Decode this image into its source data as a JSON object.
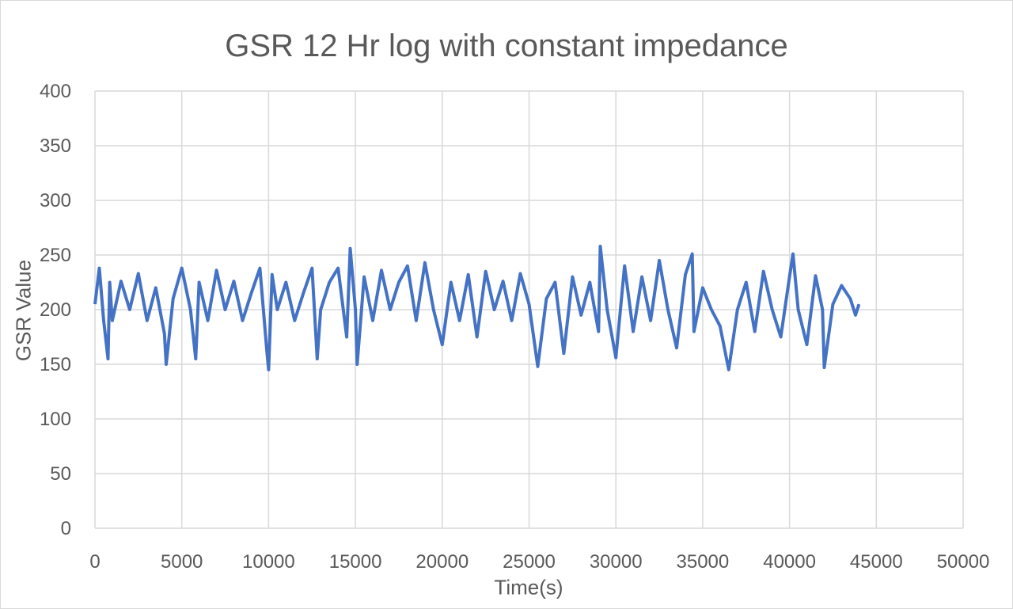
{
  "chart_data": {
    "type": "line",
    "title": "GSR 12 Hr log with constant impedance",
    "xlabel": "Time(s)",
    "ylabel": "GSR Value",
    "xlim": [
      0,
      50000
    ],
    "ylim": [
      0,
      400
    ],
    "x_ticks": [
      0,
      5000,
      10000,
      15000,
      20000,
      25000,
      30000,
      35000,
      40000,
      45000,
      50000
    ],
    "y_ticks": [
      0,
      50,
      100,
      150,
      200,
      250,
      300,
      350,
      400
    ],
    "x_tick_labels": [
      "0",
      "5000",
      "10000",
      "15000",
      "20000",
      "25000",
      "30000",
      "35000",
      "40000",
      "45000",
      "50000"
    ],
    "y_tick_labels": [
      "0",
      "50",
      "100",
      "150",
      "200",
      "250",
      "300",
      "350",
      "400"
    ],
    "grid": true,
    "series_color": "#4472c4",
    "grid_color": "#d9d9d9",
    "series": [
      {
        "name": "",
        "x": [
          0,
          250,
          500,
          750,
          850,
          1000,
          1500,
          2000,
          2500,
          3000,
          3500,
          4000,
          4100,
          4500,
          5000,
          5500,
          5800,
          6000,
          6500,
          7000,
          7500,
          8000,
          8500,
          9000,
          9500,
          9900,
          10000,
          10200,
          10500,
          11000,
          11500,
          12000,
          12500,
          12800,
          13000,
          13500,
          14000,
          14500,
          14700,
          15000,
          15100,
          15500,
          16000,
          16500,
          17000,
          17500,
          18000,
          18500,
          19000,
          19500,
          20000,
          20500,
          21000,
          21500,
          22000,
          22500,
          23000,
          23500,
          24000,
          24500,
          25000,
          25500,
          26000,
          26500,
          27000,
          27500,
          28000,
          28500,
          29000,
          29100,
          29500,
          30000,
          30500,
          31000,
          31500,
          32000,
          32500,
          33000,
          33500,
          34000,
          34400,
          34500,
          35000,
          35500,
          36000,
          36500,
          37000,
          37500,
          38000,
          38500,
          39000,
          39500,
          40000,
          40200,
          40500,
          41000,
          41500,
          41900,
          42000,
          42500,
          43000,
          43500,
          43800,
          44000
        ],
        "y": [
          205,
          238,
          190,
          155,
          225,
          190,
          226,
          200,
          233,
          190,
          220,
          178,
          150,
          210,
          238,
          200,
          155,
          225,
          190,
          236,
          200,
          226,
          190,
          215,
          238,
          162,
          145,
          232,
          200,
          225,
          190,
          215,
          238,
          155,
          200,
          225,
          238,
          175,
          256,
          200,
          150,
          230,
          190,
          236,
          200,
          225,
          240,
          190,
          243,
          200,
          168,
          225,
          190,
          232,
          175,
          235,
          200,
          226,
          190,
          233,
          205,
          148,
          210,
          225,
          160,
          230,
          195,
          225,
          180,
          258,
          200,
          156,
          240,
          180,
          230,
          190,
          245,
          200,
          165,
          232,
          251,
          180,
          220,
          200,
          185,
          145,
          200,
          225,
          180,
          235,
          200,
          175,
          230,
          251,
          200,
          168,
          231,
          200,
          147,
          205,
          222,
          210,
          195,
          205
        ]
      }
    ]
  }
}
